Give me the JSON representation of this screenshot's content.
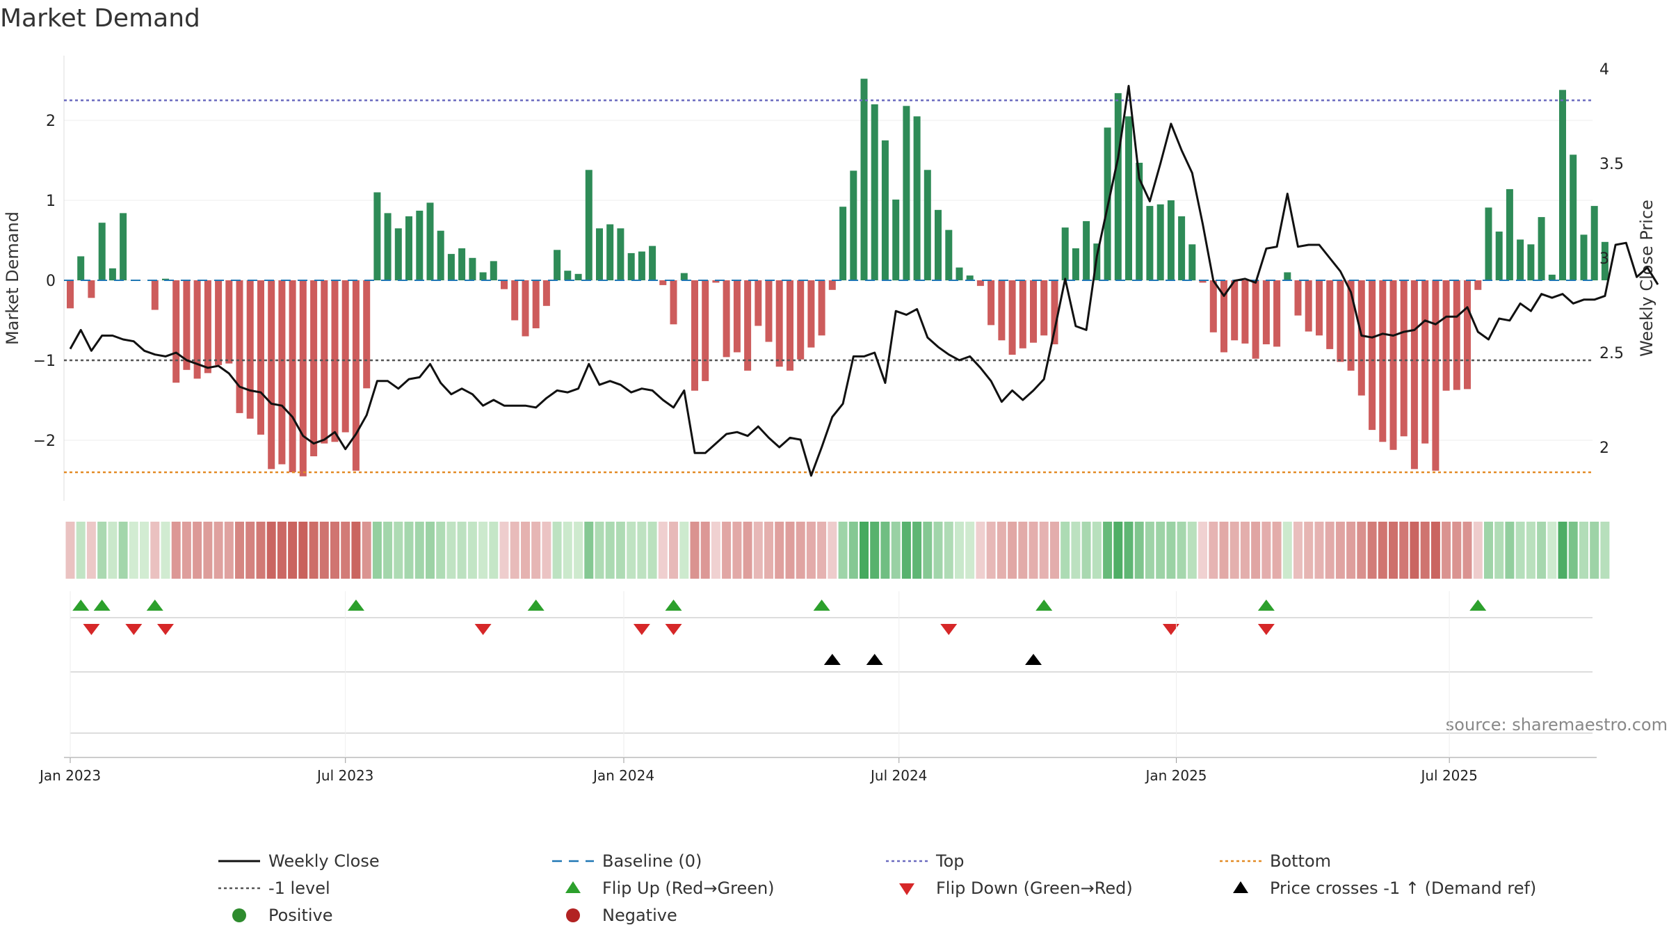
{
  "chart_data": {
    "type": "bar+line",
    "title": "Market Demand",
    "ylabel_left": "Market Demand",
    "ylabel_right": "Weekly Close Price",
    "source": "source: sharemaestro.com",
    "ylim_left": [
      -2.75,
      2.75
    ],
    "ylim_right": [
      1.75,
      4.05
    ],
    "yticks_left": [
      2,
      1,
      0,
      -1,
      -2
    ],
    "yticks_left_labels": [
      "2",
      "1",
      "0",
      "−1",
      "−2"
    ],
    "yticks_right": [
      4,
      3.5,
      3,
      2.5,
      2
    ],
    "yticks_right_labels": [
      "4",
      "3.5",
      "3",
      "2.5",
      "2"
    ],
    "x_ticks": [
      {
        "label": "Jan 2023",
        "week": 0
      },
      {
        "label": "Jul 2023",
        "week": 26
      },
      {
        "label": "Jan 2024",
        "week": 52.3
      },
      {
        "label": "Jul 2024",
        "week": 78.3
      },
      {
        "label": "Jan 2025",
        "week": 104.5
      },
      {
        "label": "Jul 2025",
        "week": 130.3
      }
    ],
    "top_level": 2.25,
    "bottom_level": -2.4,
    "minus_one_level": -1,
    "demand": [
      -0.35,
      0.3,
      -0.22,
      0.72,
      0.15,
      0.84,
      0,
      0,
      -0.37,
      0.02,
      -1.28,
      -1.12,
      -1.23,
      -1.16,
      -1.06,
      -1.04,
      -1.66,
      -1.73,
      -1.93,
      -2.36,
      -2.3,
      -2.4,
      -2.45,
      -2.2,
      -2.04,
      -2.02,
      -1.9,
      -2.38,
      -1.35,
      1.1,
      0.84,
      0.65,
      0.8,
      0.87,
      0.97,
      0.62,
      0.33,
      0.4,
      0.28,
      0.1,
      0.24,
      -0.11,
      -0.5,
      -0.7,
      -0.6,
      -0.32,
      0.38,
      0.12,
      0.08,
      1.38,
      0.65,
      0.7,
      0.65,
      0.34,
      0.36,
      0.43,
      -0.06,
      -0.55,
      0.09,
      -1.38,
      -1.26,
      -0.03,
      -0.96,
      -0.9,
      -1.13,
      -0.57,
      -0.77,
      -1.08,
      -1.13,
      -0.99,
      -0.84,
      -0.69,
      -0.12,
      0.92,
      1.37,
      2.52,
      2.2,
      1.75,
      1.01,
      2.18,
      2.05,
      1.38,
      0.88,
      0.63,
      0.16,
      0.06,
      -0.07,
      -0.56,
      -0.75,
      -0.93,
      -0.85,
      -0.78,
      -0.69,
      -0.8,
      0.66,
      0.4,
      0.74,
      0.46,
      1.91,
      2.34,
      2.05,
      1.47,
      0.93,
      0.95,
      1.0,
      0.8,
      0.45,
      -0.03,
      -0.65,
      -0.9,
      -0.75,
      -0.79,
      -0.98,
      -0.8,
      -0.83,
      0.1,
      -0.44,
      -0.64,
      -0.69,
      -0.86,
      -1.02,
      -1.13,
      -1.44,
      -1.87,
      -2.02,
      -2.12,
      -1.95,
      -2.36,
      -2.04,
      -2.38,
      -1.38,
      -1.37,
      -1.36,
      -0.12,
      0.91,
      0.61,
      1.14,
      0.51,
      0.45,
      0.79,
      0.07,
      2.38,
      1.57,
      0.57,
      0.93,
      0.48
    ],
    "close": [
      2.52,
      2.62,
      2.51,
      2.59,
      2.59,
      2.57,
      2.56,
      2.51,
      2.49,
      2.48,
      2.5,
      2.46,
      2.44,
      2.42,
      2.43,
      2.39,
      2.32,
      2.3,
      2.29,
      2.23,
      2.22,
      2.16,
      2.06,
      2.02,
      2.04,
      2.08,
      1.99,
      2.07,
      2.17,
      2.35,
      2.35,
      2.31,
      2.36,
      2.37,
      2.44,
      2.34,
      2.28,
      2.31,
      2.28,
      2.22,
      2.25,
      2.22,
      2.22,
      2.22,
      2.21,
      2.26,
      2.3,
      2.29,
      2.31,
      2.44,
      2.33,
      2.35,
      2.33,
      2.29,
      2.31,
      2.3,
      2.25,
      2.21,
      2.3,
      1.97,
      1.97,
      2.02,
      2.07,
      2.08,
      2.06,
      2.11,
      2.05,
      2.0,
      2.05,
      2.04,
      1.85,
      2.0,
      2.16,
      2.23,
      2.48,
      2.48,
      2.5,
      2.34,
      2.72,
      2.7,
      2.73,
      2.58,
      2.53,
      2.49,
      2.46,
      2.48,
      2.42,
      2.35,
      2.24,
      2.3,
      2.25,
      2.3,
      2.36,
      2.62,
      2.89,
      2.64,
      2.62,
      3.01,
      3.27,
      3.53,
      3.91,
      3.42,
      3.3,
      3.5,
      3.71,
      3.57,
      3.45,
      3.18,
      2.88,
      2.8,
      2.88,
      2.89,
      2.87,
      3.05,
      3.06,
      3.34,
      3.06,
      3.07,
      3.07,
      3.0,
      2.93,
      2.82,
      2.59,
      2.58,
      2.6,
      2.59,
      2.61,
      2.62,
      2.67,
      2.65,
      2.69,
      2.69,
      2.74,
      2.61,
      2.57,
      2.68,
      2.67,
      2.76,
      2.72,
      2.81,
      2.79,
      2.81,
      2.76,
      2.78,
      2.78,
      2.8,
      3.07,
      3.08,
      2.9,
      2.95,
      2.86
    ],
    "flip_up_weeks": [
      1,
      3,
      8,
      27,
      44,
      57,
      71,
      92,
      113,
      133
    ],
    "flip_down_weeks": [
      2,
      6,
      9,
      39,
      54,
      57,
      83,
      104,
      113
    ],
    "price_cross_weeks": [
      72,
      76,
      91
    ],
    "legend": [
      {
        "label": "Weekly Close",
        "marker": "solid-line",
        "color": "#111111"
      },
      {
        "label": "Baseline (0)",
        "marker": "dashed-line",
        "color": "#1f77b4"
      },
      {
        "label": "Top",
        "marker": "dotted-line",
        "color": "#6b6bbf"
      },
      {
        "label": "Bottom",
        "marker": "dotted-line",
        "color": "#e38b25"
      },
      {
        "label": "-1 level",
        "marker": "dotted-line",
        "color": "#555555"
      },
      {
        "label": "Flip Up (Red→Green)",
        "marker": "triangle-up",
        "color": "#2ca02c"
      },
      {
        "label": "Flip Down (Green→Red)",
        "marker": "triangle-down",
        "color": "#d62728"
      },
      {
        "label": "Price crosses -1 ↑ (Demand ref)",
        "marker": "triangle-up",
        "color": "#000000"
      },
      {
        "label": "Positive",
        "marker": "circle",
        "color": "#2e8b2e"
      },
      {
        "label": "Negative",
        "marker": "circle",
        "color": "#b22222"
      }
    ],
    "colors": {
      "positive_bar": "#2e8b57",
      "negative_bar": "#cd5c5c",
      "flip_up": "#2ca02c",
      "flip_down": "#d62728",
      "price": "#111111",
      "top": "#6b6bbf",
      "bottom": "#e38b25",
      "minus_one": "#555555",
      "baseline": "#1f77b4"
    }
  }
}
